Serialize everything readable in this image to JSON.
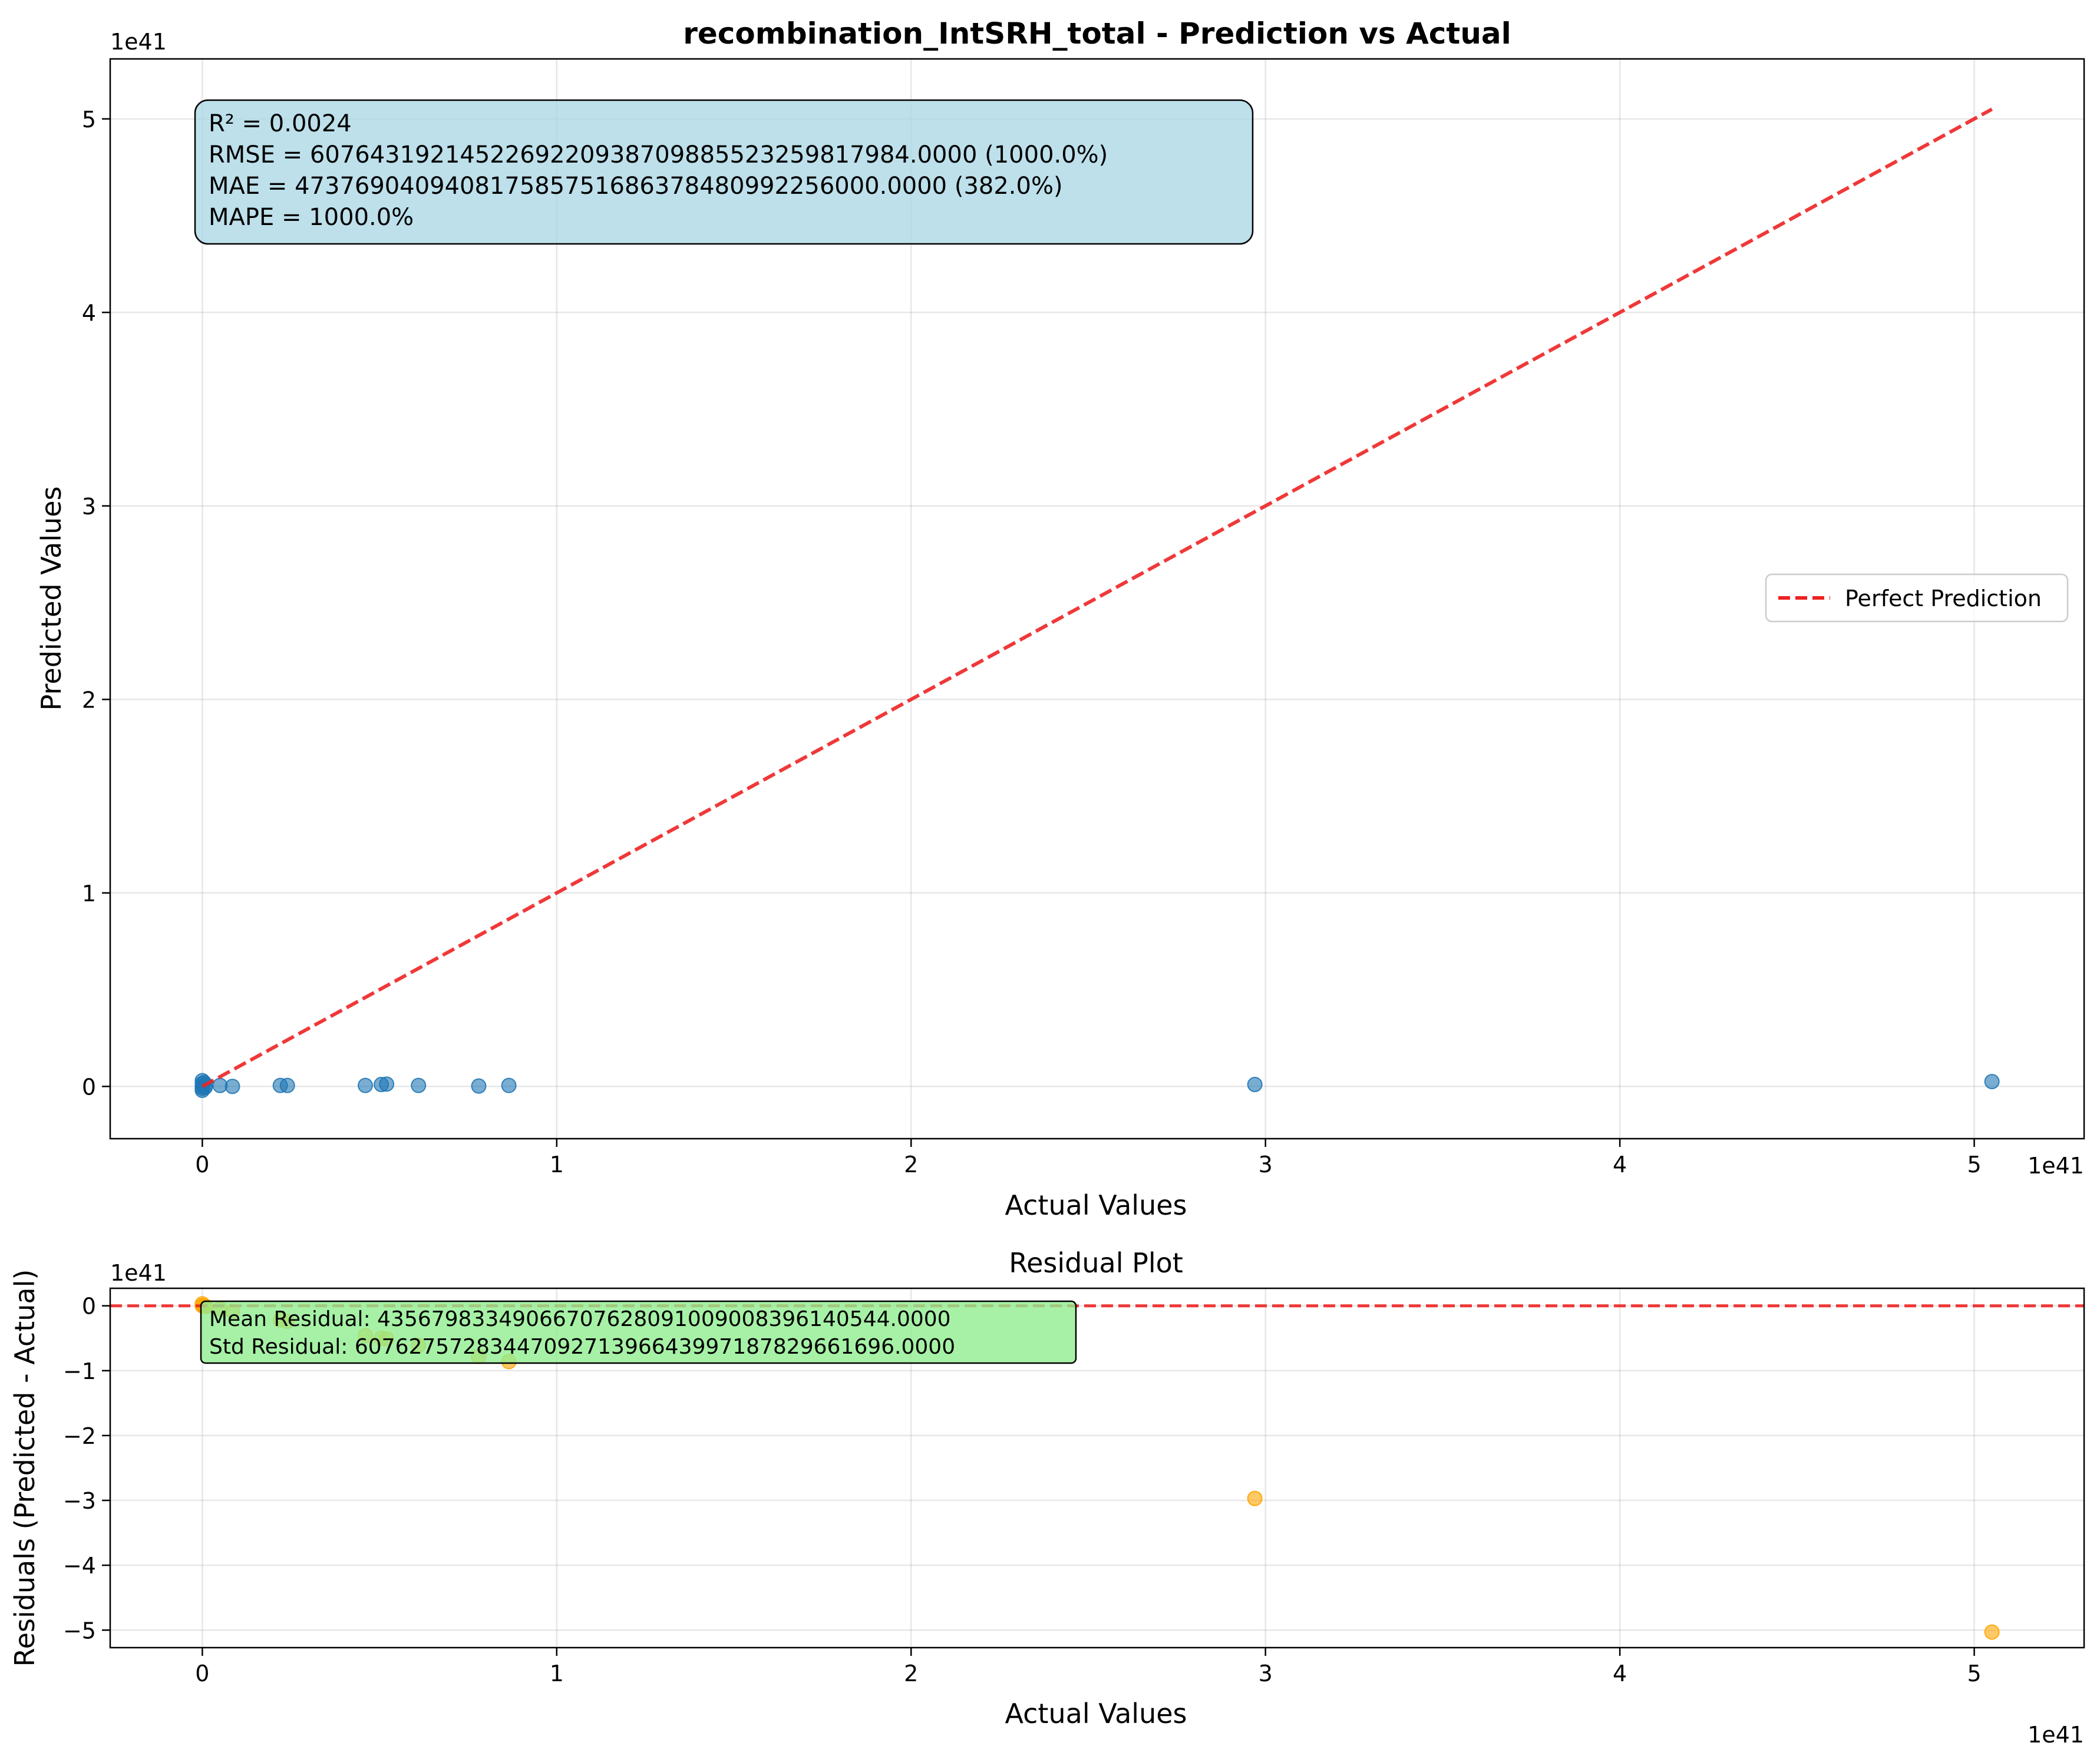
{
  "chart_data": [
    {
      "type": "scatter",
      "title": "recombination_IntSRH_total - Prediction vs Actual",
      "xlabel": "Actual Values",
      "ylabel": "Predicted Values",
      "x_offset_label": "1e41",
      "y_offset_label": "1e41",
      "xlim": [
        -0.26,
        5.31
      ],
      "ylim": [
        -0.27,
        5.31
      ],
      "x_ticks": [
        {
          "value": 0,
          "label": "0"
        },
        {
          "value": 1,
          "label": "1"
        },
        {
          "value": 2,
          "label": "2"
        },
        {
          "value": 3,
          "label": "3"
        },
        {
          "value": 4,
          "label": "4"
        },
        {
          "value": 5,
          "label": "5"
        }
      ],
      "y_ticks": [
        {
          "value": 0,
          "label": "0"
        },
        {
          "value": 1,
          "label": "1"
        },
        {
          "value": 2,
          "label": "2"
        },
        {
          "value": 3,
          "label": "3"
        },
        {
          "value": 4,
          "label": "4"
        },
        {
          "value": 5,
          "label": "5"
        }
      ],
      "grid": true,
      "series": [
        {
          "kind": "points",
          "color": "#1f77b4",
          "x": [
            0,
            0,
            0,
            0,
            0,
            0.005,
            0.008,
            0.01,
            0.05,
            0.085,
            0.22,
            0.24,
            0.46,
            0.505,
            0.52,
            0.61,
            0.78,
            0.865,
            2.97,
            5.05
          ],
          "y": [
            0.03,
            0.015,
            0.0,
            -0.01,
            -0.02,
            0.02,
            -0.005,
            0.01,
            0.005,
            0.0,
            0.005,
            0.005,
            0.005,
            0.01,
            0.012,
            0.005,
            0.002,
            0.005,
            0.01,
            0.025
          ]
        },
        {
          "kind": "line",
          "name": "Perfect Prediction",
          "color": "#ee2222",
          "x": [
            0,
            5.05
          ],
          "y": [
            0,
            5.05
          ]
        }
      ],
      "legend": {
        "placement": "center-right",
        "entries": [
          "Perfect Prediction"
        ]
      },
      "annotation": {
        "lines": [
          "R² = 0.0024",
          "RMSE = 607643192145226922093870988552325981798​4.0000 (1000.0%)",
          "MAE = 473769040940817585751686378480992256000.0000 (382.0%)",
          "MAPE = 1000.0%"
        ],
        "background": "#add8e6"
      }
    },
    {
      "type": "scatter",
      "title": "Residual Plot",
      "xlabel": "Actual Values",
      "ylabel": "Residuals (Predicted - Actual)",
      "x_offset_label": "1e41",
      "y_offset_label": "1e41",
      "xlim": [
        -0.26,
        5.31
      ],
      "ylim": [
        -5.27,
        0.27
      ],
      "x_ticks": [
        {
          "value": 0,
          "label": "0"
        },
        {
          "value": 1,
          "label": "1"
        },
        {
          "value": 2,
          "label": "2"
        },
        {
          "value": 3,
          "label": "3"
        },
        {
          "value": 4,
          "label": "4"
        },
        {
          "value": 5,
          "label": "5"
        }
      ],
      "y_ticks": [
        {
          "value": 0,
          "label": "0"
        },
        {
          "value": -1,
          "label": "−1"
        },
        {
          "value": -2,
          "label": "−2"
        },
        {
          "value": -3,
          "label": "−3"
        },
        {
          "value": -4,
          "label": "−4"
        },
        {
          "value": -5,
          "label": "−5"
        }
      ],
      "grid": true,
      "series": [
        {
          "kind": "points",
          "color": "#ffa500",
          "x": [
            0,
            0,
            0.005,
            0.01,
            0.05,
            0.085,
            0.22,
            0.24,
            0.46,
            0.505,
            0.52,
            0.61,
            0.78,
            0.865,
            2.97,
            5.05
          ],
          "y": [
            0.03,
            0.0,
            -0.005,
            -0.01,
            -0.05,
            -0.085,
            -0.22,
            -0.24,
            -0.46,
            -0.5,
            -0.51,
            -0.61,
            -0.78,
            -0.86,
            -2.97,
            -5.03
          ]
        },
        {
          "kind": "hline",
          "color": "#ee2222",
          "y": 0
        }
      ],
      "annotation": {
        "lines": [
          "Mean Residual: 4356798334906670762809100900839614054​4.0000",
          "Std Residual: 607627572834470927139664399718782966169​6.0000"
        ],
        "background": "#90ee90"
      }
    }
  ]
}
